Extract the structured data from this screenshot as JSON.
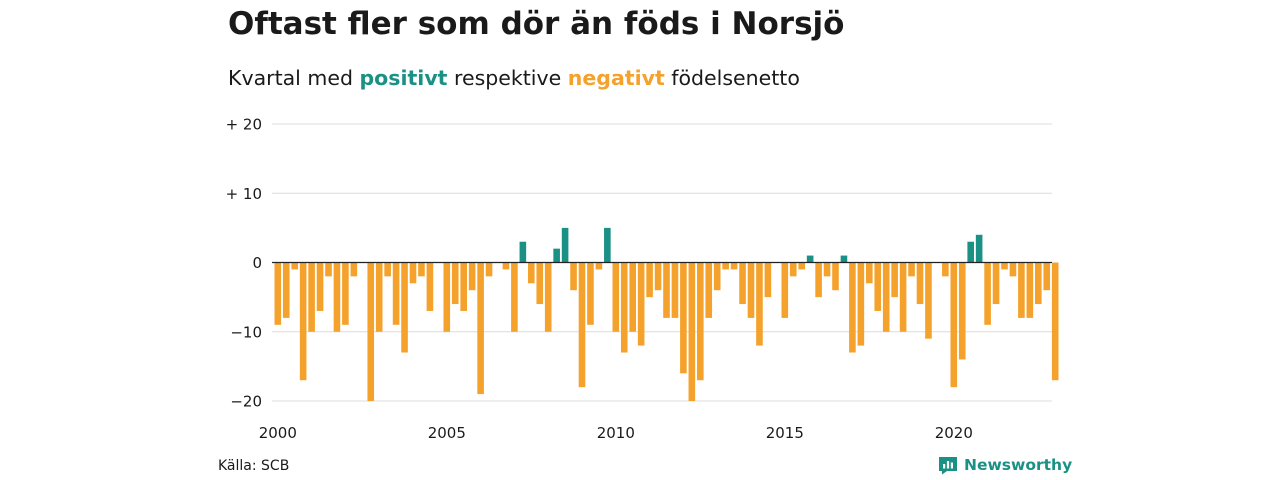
{
  "title": "Oftast fler som dör än föds i Norsjö",
  "subtitle": {
    "before": "Kvartal med ",
    "positive_word": "positivt",
    "middle": " respektive ",
    "negative_word": "negativt",
    "after": " födelsenetto"
  },
  "source": "Källa: SCB",
  "brand": {
    "name": "Newsworthy",
    "icon": "newsworthy-logo-icon"
  },
  "colors": {
    "positive": "#1a9184",
    "negative": "#f4a22c",
    "grid": "#dcdcdc",
    "zero_line": "#222222",
    "text": "#1a1a1a"
  },
  "chart_data": {
    "type": "bar",
    "x_label": "",
    "y_label": "",
    "ylim": [
      -20,
      20
    ],
    "yticks": [
      {
        "value": 20,
        "label": "+ 20"
      },
      {
        "value": 10,
        "label": "+ 10"
      },
      {
        "value": 0,
        "label": "0"
      },
      {
        "value": -10,
        "label": "−10"
      },
      {
        "value": -20,
        "label": "−20"
      }
    ],
    "xticks": [
      "2000",
      "2005",
      "2010",
      "2015",
      "2020"
    ],
    "grid": true,
    "start": "2000 Q1",
    "frequency": "quarterly",
    "values": [
      -9,
      -8,
      -1,
      -17,
      -10,
      -7,
      -2,
      -10,
      -9,
      -2,
      0,
      -20,
      -10,
      -2,
      -9,
      -13,
      -3,
      -2,
      -7,
      0,
      -10,
      -6,
      -7,
      -4,
      -19,
      -2,
      0,
      -1,
      -10,
      3,
      -3,
      -6,
      -10,
      2,
      5,
      -4,
      -18,
      -9,
      -1,
      5,
      -10,
      -13,
      -10,
      -12,
      -5,
      -4,
      -8,
      -8,
      -16,
      -20,
      -17,
      -8,
      -4,
      -1,
      -1,
      -6,
      -8,
      -12,
      -5,
      0,
      -8,
      -2,
      -1,
      1,
      -5,
      -2,
      -4,
      1,
      -13,
      -12,
      -3,
      -7,
      -10,
      -5,
      -10,
      -2,
      -6,
      -11,
      0,
      -2,
      -18,
      -14,
      3,
      4,
      -9,
      -6,
      -1,
      -2,
      -8,
      -8,
      -6,
      -4,
      -17
    ]
  }
}
